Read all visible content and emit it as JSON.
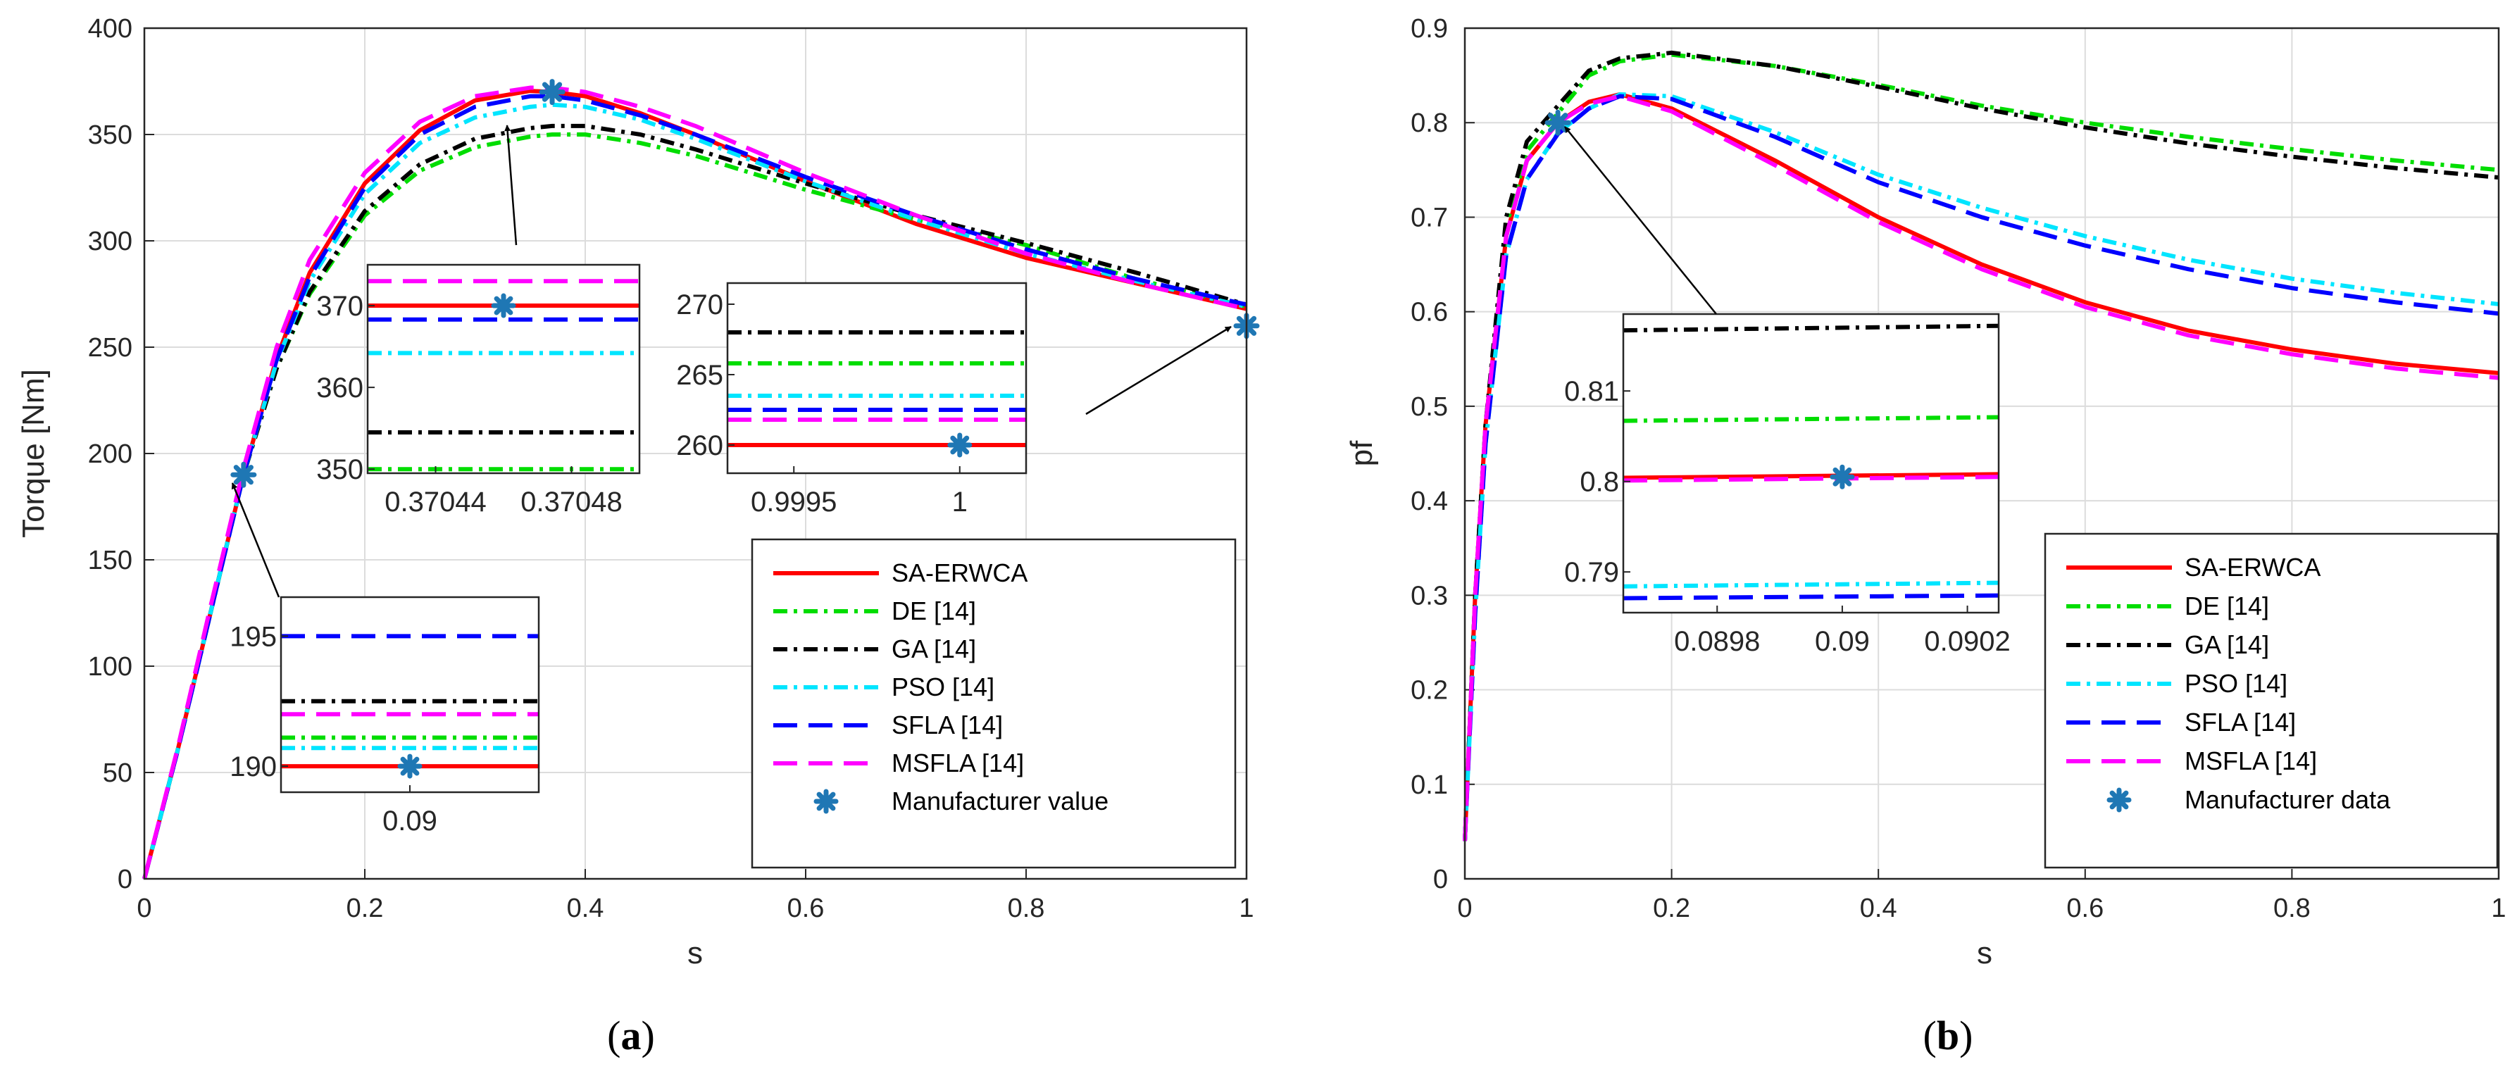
{
  "chart_data": [
    {
      "id": "a",
      "type": "line",
      "caption": "(a)",
      "xlabel": "s",
      "ylabel": "Torque [Nm]",
      "xlim": [
        0,
        1
      ],
      "ylim": [
        0,
        400
      ],
      "xticks": [
        "0",
        "0.2",
        "0.4",
        "0.6",
        "0.8",
        "1"
      ],
      "yticks": [
        "0",
        "50",
        "100",
        "150",
        "200",
        "250",
        "300",
        "350",
        "400"
      ],
      "grid": true,
      "legend_position": "bottom-right",
      "series": [
        {
          "name": "SA-ERWCA",
          "color": "#ff0000",
          "style": "solid",
          "x": [
            0,
            0.03,
            0.06,
            0.09,
            0.12,
            0.15,
            0.2,
            0.25,
            0.3,
            0.35,
            0.37,
            0.4,
            0.45,
            0.5,
            0.6,
            0.7,
            0.8,
            0.9,
            1.0
          ],
          "y": [
            0,
            60,
            125,
            190,
            245,
            285,
            327,
            352,
            366,
            370.5,
            370,
            368,
            360,
            350,
            328,
            308,
            292,
            280,
            268
          ]
        },
        {
          "name": "DE [14]",
          "color": "#00dd00",
          "style": "dashdot",
          "x": [
            0,
            0.03,
            0.06,
            0.09,
            0.12,
            0.15,
            0.2,
            0.25,
            0.3,
            0.35,
            0.37,
            0.4,
            0.45,
            0.5,
            0.6,
            0.7,
            0.8,
            0.9,
            1.0
          ],
          "y": [
            0,
            60,
            125,
            190,
            240,
            275,
            312,
            333,
            344,
            349,
            350,
            350,
            346,
            340,
            324,
            310,
            298,
            282,
            269
          ]
        },
        {
          "name": "GA [14]",
          "color": "#000000",
          "style": "dashdot",
          "x": [
            0,
            0.03,
            0.06,
            0.09,
            0.12,
            0.15,
            0.2,
            0.25,
            0.3,
            0.35,
            0.37,
            0.4,
            0.45,
            0.5,
            0.6,
            0.7,
            0.8,
            0.9,
            1.0
          ],
          "y": [
            0,
            60,
            125,
            190,
            240,
            276,
            314,
            336,
            348,
            353,
            354,
            354,
            350,
            343,
            327,
            312,
            299,
            285,
            270
          ]
        },
        {
          "name": "PSO [14]",
          "color": "#00e5ff",
          "style": "dashdot",
          "x": [
            0,
            0.03,
            0.06,
            0.09,
            0.12,
            0.15,
            0.2,
            0.25,
            0.3,
            0.35,
            0.37,
            0.4,
            0.45,
            0.5,
            0.6,
            0.7,
            0.8,
            0.9,
            1.0
          ],
          "y": [
            0,
            60,
            125,
            190,
            243,
            281,
            322,
            346,
            358,
            363,
            364,
            363,
            357,
            348,
            328,
            310,
            294,
            281,
            269
          ]
        },
        {
          "name": "SFLA [14]",
          "color": "#0000ff",
          "style": "dashed",
          "x": [
            0,
            0.03,
            0.06,
            0.09,
            0.12,
            0.15,
            0.2,
            0.25,
            0.3,
            0.35,
            0.37,
            0.4,
            0.45,
            0.5,
            0.6,
            0.7,
            0.8,
            0.9,
            1.0
          ],
          "y": [
            0,
            60,
            125,
            190,
            244,
            283,
            325,
            350,
            363,
            368,
            368,
            366,
            359,
            350,
            330,
            312,
            296,
            282,
            270
          ]
        },
        {
          "name": "MSFLA [14]",
          "color": "#ff00ff",
          "style": "dashed",
          "x": [
            0,
            0.03,
            0.06,
            0.09,
            0.12,
            0.15,
            0.2,
            0.25,
            0.3,
            0.35,
            0.37,
            0.4,
            0.45,
            0.5,
            0.6,
            0.7,
            0.8,
            0.9,
            1.0
          ],
          "y": [
            0,
            61,
            128,
            193,
            250,
            291,
            332,
            356,
            368,
            372,
            372,
            370,
            363,
            354,
            332,
            312,
            294,
            280,
            268
          ]
        }
      ],
      "markers": {
        "name": "Manufacturer value",
        "color": "#1f77b4",
        "x": [
          0.09,
          0.37,
          1.0
        ],
        "y": [
          190,
          370,
          260
        ]
      },
      "insets": [
        {
          "xlim": [
            0.0899,
            0.0901
          ],
          "ylim": [
            189,
            196.5
          ],
          "xticks": [
            {
              "v": 0.09,
              "label": "0.09"
            }
          ],
          "yticks": [
            {
              "v": 190,
              "label": "190"
            },
            {
              "v": 195,
              "label": "195"
            }
          ],
          "lines": [
            {
              "series": "SFLA [14]",
              "y": 195
            },
            {
              "series": "GA [14]",
              "y": 192.5
            },
            {
              "series": "MSFLA [14]",
              "y": 192
            },
            {
              "series": "DE [14]",
              "y": 191.1
            },
            {
              "series": "PSO [14]",
              "y": 190.7
            },
            {
              "series": "SA-ERWCA",
              "y": 190
            }
          ],
          "marker": {
            "x": 0.09,
            "y": 190
          }
        },
        {
          "xlim": [
            0.37042,
            0.3705
          ],
          "ylim": [
            349.5,
            375
          ],
          "xticks": [
            {
              "v": 0.37044,
              "label": "0.37044"
            },
            {
              "v": 0.37048,
              "label": "0.37048"
            }
          ],
          "yticks": [
            {
              "v": 350,
              "label": "350"
            },
            {
              "v": 360,
              "label": "360"
            },
            {
              "v": 370,
              "label": "370"
            }
          ],
          "lines": [
            {
              "series": "MSFLA [14]",
              "y": 373
            },
            {
              "series": "SA-ERWCA",
              "y": 370
            },
            {
              "series": "SFLA [14]",
              "y": 368.3
            },
            {
              "series": "PSO [14]",
              "y": 364.2
            },
            {
              "series": "GA [14]",
              "y": 354.5
            },
            {
              "series": "DE [14]",
              "y": 350
            }
          ],
          "marker": {
            "x": 0.37046,
            "y": 370
          }
        },
        {
          "xlim": [
            0.9993,
            1.0002
          ],
          "ylim": [
            258,
            271.5
          ],
          "xticks": [
            {
              "v": 0.9995,
              "label": "0.9995"
            },
            {
              "v": 1.0,
              "label": "1"
            }
          ],
          "yticks": [
            {
              "v": 260,
              "label": "260"
            },
            {
              "v": 265,
              "label": "265"
            },
            {
              "v": 270,
              "label": "270"
            }
          ],
          "lines": [
            {
              "series": "GA [14]",
              "y": 268
            },
            {
              "series": "DE [14]",
              "y": 265.8
            },
            {
              "series": "PSO [14]",
              "y": 263.5
            },
            {
              "series": "SFLA [14]",
              "y": 262.5
            },
            {
              "series": "MSFLA [14]",
              "y": 261.8
            },
            {
              "series": "SA-ERWCA",
              "y": 260
            }
          ],
          "marker": {
            "x": 1.0,
            "y": 260
          }
        }
      ]
    },
    {
      "id": "b",
      "type": "line",
      "caption": "(b)",
      "xlabel": "s",
      "ylabel": "pf",
      "xlim": [
        0,
        1
      ],
      "ylim": [
        0,
        0.9
      ],
      "xticks": [
        "0",
        "0.2",
        "0.4",
        "0.6",
        "0.8",
        "1"
      ],
      "yticks": [
        "0",
        "0.1",
        "0.2",
        "0.3",
        "0.4",
        "0.5",
        "0.6",
        "0.7",
        "0.8",
        "0.9"
      ],
      "grid": true,
      "legend_position": "bottom-right",
      "series": [
        {
          "name": "SA-ERWCA",
          "color": "#ff0000",
          "style": "solid",
          "x": [
            0,
            0.01,
            0.02,
            0.04,
            0.06,
            0.09,
            0.12,
            0.15,
            0.2,
            0.3,
            0.4,
            0.5,
            0.6,
            0.7,
            0.8,
            0.9,
            1.0
          ],
          "y": [
            0.04,
            0.3,
            0.48,
            0.68,
            0.76,
            0.8,
            0.822,
            0.83,
            0.815,
            0.76,
            0.7,
            0.65,
            0.61,
            0.58,
            0.56,
            0.545,
            0.535
          ]
        },
        {
          "name": "DE [14]",
          "color": "#00dd00",
          "style": "dashdot",
          "x": [
            0,
            0.01,
            0.02,
            0.04,
            0.06,
            0.09,
            0.12,
            0.15,
            0.2,
            0.3,
            0.4,
            0.5,
            0.6,
            0.7,
            0.8,
            0.9,
            1.0
          ],
          "y": [
            0.04,
            0.3,
            0.48,
            0.69,
            0.77,
            0.81,
            0.85,
            0.865,
            0.872,
            0.86,
            0.84,
            0.818,
            0.8,
            0.785,
            0.772,
            0.76,
            0.75
          ]
        },
        {
          "name": "GA [14]",
          "color": "#000000",
          "style": "dashdot",
          "x": [
            0,
            0.01,
            0.02,
            0.04,
            0.06,
            0.09,
            0.12,
            0.15,
            0.2,
            0.3,
            0.4,
            0.5,
            0.6,
            0.7,
            0.8,
            0.9,
            1.0
          ],
          "y": [
            0.04,
            0.3,
            0.48,
            0.7,
            0.78,
            0.818,
            0.855,
            0.868,
            0.874,
            0.86,
            0.838,
            0.815,
            0.795,
            0.778,
            0.764,
            0.752,
            0.742
          ]
        },
        {
          "name": "PSO [14]",
          "color": "#00e5ff",
          "style": "dashdot",
          "x": [
            0,
            0.01,
            0.02,
            0.04,
            0.06,
            0.09,
            0.12,
            0.15,
            0.2,
            0.3,
            0.4,
            0.5,
            0.6,
            0.7,
            0.8,
            0.9,
            1.0
          ],
          "y": [
            0.04,
            0.28,
            0.46,
            0.66,
            0.74,
            0.789,
            0.815,
            0.83,
            0.828,
            0.79,
            0.745,
            0.71,
            0.68,
            0.655,
            0.635,
            0.62,
            0.608
          ]
        },
        {
          "name": "SFLA [14]",
          "color": "#0000ff",
          "style": "dashed",
          "x": [
            0,
            0.01,
            0.02,
            0.04,
            0.06,
            0.09,
            0.12,
            0.15,
            0.2,
            0.3,
            0.4,
            0.5,
            0.6,
            0.7,
            0.8,
            0.9,
            1.0
          ],
          "y": [
            0.04,
            0.28,
            0.46,
            0.66,
            0.74,
            0.788,
            0.815,
            0.828,
            0.825,
            0.785,
            0.737,
            0.7,
            0.67,
            0.645,
            0.625,
            0.61,
            0.598
          ]
        },
        {
          "name": "MSFLA [14]",
          "color": "#ff00ff",
          "style": "dashed",
          "x": [
            0,
            0.01,
            0.02,
            0.04,
            0.06,
            0.09,
            0.12,
            0.15,
            0.2,
            0.3,
            0.4,
            0.5,
            0.6,
            0.7,
            0.8,
            0.9,
            1.0
          ],
          "y": [
            0.04,
            0.3,
            0.48,
            0.68,
            0.76,
            0.8,
            0.82,
            0.828,
            0.812,
            0.755,
            0.695,
            0.645,
            0.605,
            0.575,
            0.555,
            0.54,
            0.53
          ]
        }
      ],
      "markers": {
        "name": "Manufacturer data",
        "color": "#1f77b4",
        "x": [
          0.09
        ],
        "y": [
          0.8
        ]
      },
      "insets": [
        {
          "xlim": [
            0.08965,
            0.09025
          ],
          "ylim": [
            0.7855,
            0.8185
          ],
          "xticks": [
            {
              "v": 0.0898,
              "label": "0.0898"
            },
            {
              "v": 0.09,
              "label": "0.09"
            },
            {
              "v": 0.0902,
              "label": "0.0902"
            }
          ],
          "yticks": [
            {
              "v": 0.79,
              "label": "0.79"
            },
            {
              "v": 0.8,
              "label": "0.8"
            },
            {
              "v": 0.81,
              "label": "0.81"
            }
          ],
          "lines": [
            {
              "series": "GA [14]",
              "y0": 0.8167,
              "y1": 0.8172
            },
            {
              "series": "DE [14]",
              "y0": 0.8067,
              "y1": 0.8071
            },
            {
              "series": "SA-ERWCA",
              "y0": 0.8004,
              "y1": 0.8008
            },
            {
              "series": "MSFLA [14]",
              "y0": 0.8001,
              "y1": 0.8005
            },
            {
              "series": "PSO [14]",
              "y0": 0.7884,
              "y1": 0.7888
            },
            {
              "series": "SFLA [14]",
              "y0": 0.7871,
              "y1": 0.7874
            }
          ],
          "marker": {
            "x": 0.09,
            "y": 0.8005
          }
        }
      ]
    }
  ]
}
